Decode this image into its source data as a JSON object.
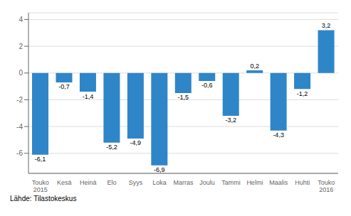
{
  "chart_data": {
    "type": "bar",
    "categories": [
      "Touko\n2015",
      "Kesä",
      "Heinä",
      "Elo",
      "Syys",
      "Loka",
      "Marras",
      "Joulu",
      "Tammi",
      "Helmi",
      "Maalis",
      "Huhti",
      "Touko\n2016"
    ],
    "values": [
      -6.1,
      -0.7,
      -1.4,
      -5.2,
      -4.9,
      -6.9,
      -1.5,
      -0.6,
      -3.2,
      0.2,
      -4.3,
      -1.2,
      3.2
    ],
    "value_labels": [
      "-6,1",
      "-0,7",
      "-1,4",
      "-5,2",
      "-4,9",
      "-6,9",
      "-1,5",
      "-0,6",
      "-3,2",
      "0,2",
      "-4,3",
      "-1,2",
      "3,2"
    ],
    "color": "#2e86c8",
    "ylim": [
      -7.5,
      4.5
    ],
    "yticks": [
      -6,
      -4,
      -2,
      0,
      2,
      4
    ],
    "grid": true,
    "data_labels": true,
    "annotations": [
      "Lähde: Tilastokeskus"
    ]
  }
}
